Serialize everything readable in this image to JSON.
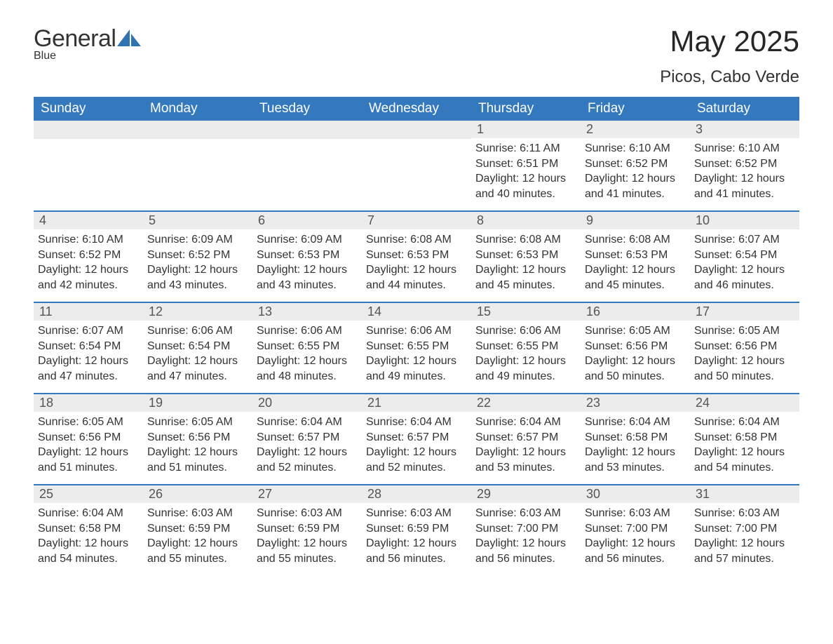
{
  "brand": {
    "word1": "General",
    "word2": "Blue"
  },
  "title": "May 2025",
  "location": "Picos, Cabo Verde",
  "colors": {
    "header_bg": "#3479bd",
    "header_text": "#ffffff",
    "daybar_bg": "#ececec",
    "text": "#333333",
    "accent": "#2f73b5"
  },
  "days_of_week": [
    "Sunday",
    "Monday",
    "Tuesday",
    "Wednesday",
    "Thursday",
    "Friday",
    "Saturday"
  ],
  "weeks": [
    [
      null,
      null,
      null,
      null,
      {
        "n": "1",
        "sunrise": "Sunrise: 6:11 AM",
        "sunset": "Sunset: 6:51 PM",
        "d1": "Daylight: 12 hours",
        "d2": "and 40 minutes."
      },
      {
        "n": "2",
        "sunrise": "Sunrise: 6:10 AM",
        "sunset": "Sunset: 6:52 PM",
        "d1": "Daylight: 12 hours",
        "d2": "and 41 minutes."
      },
      {
        "n": "3",
        "sunrise": "Sunrise: 6:10 AM",
        "sunset": "Sunset: 6:52 PM",
        "d1": "Daylight: 12 hours",
        "d2": "and 41 minutes."
      }
    ],
    [
      {
        "n": "4",
        "sunrise": "Sunrise: 6:10 AM",
        "sunset": "Sunset: 6:52 PM",
        "d1": "Daylight: 12 hours",
        "d2": "and 42 minutes."
      },
      {
        "n": "5",
        "sunrise": "Sunrise: 6:09 AM",
        "sunset": "Sunset: 6:52 PM",
        "d1": "Daylight: 12 hours",
        "d2": "and 43 minutes."
      },
      {
        "n": "6",
        "sunrise": "Sunrise: 6:09 AM",
        "sunset": "Sunset: 6:53 PM",
        "d1": "Daylight: 12 hours",
        "d2": "and 43 minutes."
      },
      {
        "n": "7",
        "sunrise": "Sunrise: 6:08 AM",
        "sunset": "Sunset: 6:53 PM",
        "d1": "Daylight: 12 hours",
        "d2": "and 44 minutes."
      },
      {
        "n": "8",
        "sunrise": "Sunrise: 6:08 AM",
        "sunset": "Sunset: 6:53 PM",
        "d1": "Daylight: 12 hours",
        "d2": "and 45 minutes."
      },
      {
        "n": "9",
        "sunrise": "Sunrise: 6:08 AM",
        "sunset": "Sunset: 6:53 PM",
        "d1": "Daylight: 12 hours",
        "d2": "and 45 minutes."
      },
      {
        "n": "10",
        "sunrise": "Sunrise: 6:07 AM",
        "sunset": "Sunset: 6:54 PM",
        "d1": "Daylight: 12 hours",
        "d2": "and 46 minutes."
      }
    ],
    [
      {
        "n": "11",
        "sunrise": "Sunrise: 6:07 AM",
        "sunset": "Sunset: 6:54 PM",
        "d1": "Daylight: 12 hours",
        "d2": "and 47 minutes."
      },
      {
        "n": "12",
        "sunrise": "Sunrise: 6:06 AM",
        "sunset": "Sunset: 6:54 PM",
        "d1": "Daylight: 12 hours",
        "d2": "and 47 minutes."
      },
      {
        "n": "13",
        "sunrise": "Sunrise: 6:06 AM",
        "sunset": "Sunset: 6:55 PM",
        "d1": "Daylight: 12 hours",
        "d2": "and 48 minutes."
      },
      {
        "n": "14",
        "sunrise": "Sunrise: 6:06 AM",
        "sunset": "Sunset: 6:55 PM",
        "d1": "Daylight: 12 hours",
        "d2": "and 49 minutes."
      },
      {
        "n": "15",
        "sunrise": "Sunrise: 6:06 AM",
        "sunset": "Sunset: 6:55 PM",
        "d1": "Daylight: 12 hours",
        "d2": "and 49 minutes."
      },
      {
        "n": "16",
        "sunrise": "Sunrise: 6:05 AM",
        "sunset": "Sunset: 6:56 PM",
        "d1": "Daylight: 12 hours",
        "d2": "and 50 minutes."
      },
      {
        "n": "17",
        "sunrise": "Sunrise: 6:05 AM",
        "sunset": "Sunset: 6:56 PM",
        "d1": "Daylight: 12 hours",
        "d2": "and 50 minutes."
      }
    ],
    [
      {
        "n": "18",
        "sunrise": "Sunrise: 6:05 AM",
        "sunset": "Sunset: 6:56 PM",
        "d1": "Daylight: 12 hours",
        "d2": "and 51 minutes."
      },
      {
        "n": "19",
        "sunrise": "Sunrise: 6:05 AM",
        "sunset": "Sunset: 6:56 PM",
        "d1": "Daylight: 12 hours",
        "d2": "and 51 minutes."
      },
      {
        "n": "20",
        "sunrise": "Sunrise: 6:04 AM",
        "sunset": "Sunset: 6:57 PM",
        "d1": "Daylight: 12 hours",
        "d2": "and 52 minutes."
      },
      {
        "n": "21",
        "sunrise": "Sunrise: 6:04 AM",
        "sunset": "Sunset: 6:57 PM",
        "d1": "Daylight: 12 hours",
        "d2": "and 52 minutes."
      },
      {
        "n": "22",
        "sunrise": "Sunrise: 6:04 AM",
        "sunset": "Sunset: 6:57 PM",
        "d1": "Daylight: 12 hours",
        "d2": "and 53 minutes."
      },
      {
        "n": "23",
        "sunrise": "Sunrise: 6:04 AM",
        "sunset": "Sunset: 6:58 PM",
        "d1": "Daylight: 12 hours",
        "d2": "and 53 minutes."
      },
      {
        "n": "24",
        "sunrise": "Sunrise: 6:04 AM",
        "sunset": "Sunset: 6:58 PM",
        "d1": "Daylight: 12 hours",
        "d2": "and 54 minutes."
      }
    ],
    [
      {
        "n": "25",
        "sunrise": "Sunrise: 6:04 AM",
        "sunset": "Sunset: 6:58 PM",
        "d1": "Daylight: 12 hours",
        "d2": "and 54 minutes."
      },
      {
        "n": "26",
        "sunrise": "Sunrise: 6:03 AM",
        "sunset": "Sunset: 6:59 PM",
        "d1": "Daylight: 12 hours",
        "d2": "and 55 minutes."
      },
      {
        "n": "27",
        "sunrise": "Sunrise: 6:03 AM",
        "sunset": "Sunset: 6:59 PM",
        "d1": "Daylight: 12 hours",
        "d2": "and 55 minutes."
      },
      {
        "n": "28",
        "sunrise": "Sunrise: 6:03 AM",
        "sunset": "Sunset: 6:59 PM",
        "d1": "Daylight: 12 hours",
        "d2": "and 56 minutes."
      },
      {
        "n": "29",
        "sunrise": "Sunrise: 6:03 AM",
        "sunset": "Sunset: 7:00 PM",
        "d1": "Daylight: 12 hours",
        "d2": "and 56 minutes."
      },
      {
        "n": "30",
        "sunrise": "Sunrise: 6:03 AM",
        "sunset": "Sunset: 7:00 PM",
        "d1": "Daylight: 12 hours",
        "d2": "and 56 minutes."
      },
      {
        "n": "31",
        "sunrise": "Sunrise: 6:03 AM",
        "sunset": "Sunset: 7:00 PM",
        "d1": "Daylight: 12 hours",
        "d2": "and 57 minutes."
      }
    ]
  ]
}
